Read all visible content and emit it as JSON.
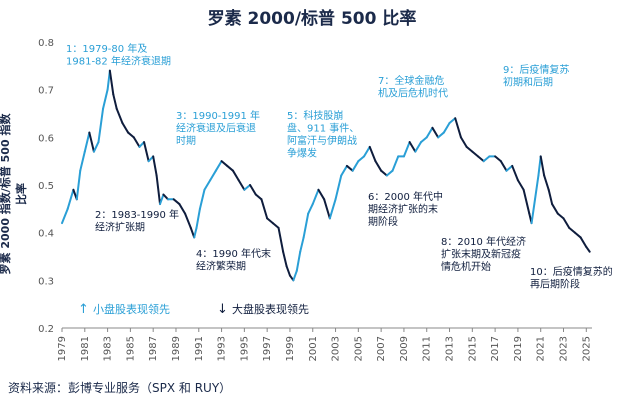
{
  "chart_data": {
    "type": "line",
    "title": "罗素 2000/标普 500 比率",
    "ylabel": "罗素 2000 指数/标普 500 指数比率",
    "xlabel": "",
    "ylim": [
      0.2,
      0.8
    ],
    "yticks": [
      "0.2",
      "0.3",
      "0.4",
      "0.5",
      "0.6",
      "0.7",
      "0.8"
    ],
    "xlim": [
      1979,
      2025.5
    ],
    "xticks": [
      "1979",
      "1981",
      "1983",
      "1985",
      "1987",
      "1989",
      "1991",
      "1993",
      "1995",
      "1997",
      "1999",
      "2001",
      "2003",
      "2005",
      "2007",
      "2009",
      "2011",
      "2013",
      "2015",
      "2017",
      "2019",
      "2021",
      "2023",
      "2025"
    ],
    "grid": false,
    "legend": "bottom-left",
    "series": [
      {
        "x": [
          1979.0,
          1979.5,
          1980.0,
          1980.3,
          1980.6,
          1981.0,
          1981.4,
          1981.8,
          1982.2,
          1982.6,
          1983.0,
          1983.2,
          1983.5,
          1983.8,
          1984.3,
          1984.8,
          1985.3,
          1985.8,
          1986.2,
          1986.6,
          1987.0,
          1987.3,
          1987.6,
          1987.9,
          1988.3,
          1988.8,
          1989.3,
          1989.8,
          1990.3,
          1990.6,
          1990.8,
          1991.1,
          1991.5,
          1992.0,
          1992.5,
          1993.0,
          1993.5,
          1994.0,
          1994.5,
          1995.0,
          1995.5,
          1996.0,
          1996.5,
          1997.0,
          1997.5,
          1998.0,
          1998.4,
          1998.7,
          1999.0,
          1999.3,
          1999.6,
          1999.9,
          2000.2,
          2000.6,
          2001.0,
          2001.5,
          2002.0,
          2002.5,
          2003.0,
          2003.5,
          2004.0,
          2004.5,
          2005.0,
          2005.5,
          2006.0,
          2006.5,
          2007.0,
          2007.5,
          2008.0,
          2008.5,
          2009.0,
          2009.5,
          2010.0,
          2010.5,
          2011.0,
          2011.5,
          2012.0,
          2012.5,
          2013.0,
          2013.5,
          2014.0,
          2014.5,
          2015.0,
          2015.5,
          2016.0,
          2016.5,
          2017.0,
          2017.5,
          2018.0,
          2018.5,
          2019.0,
          2019.5,
          2020.0,
          2020.2,
          2020.5,
          2020.8,
          2021.0,
          2021.3,
          2021.7,
          2022.0,
          2022.5,
          2023.0,
          2023.5,
          2024.0,
          2024.5,
          2025.0,
          2025.3
        ],
        "values": [
          0.42,
          0.45,
          0.49,
          0.47,
          0.53,
          0.57,
          0.61,
          0.57,
          0.59,
          0.66,
          0.7,
          0.74,
          0.69,
          0.66,
          0.63,
          0.61,
          0.6,
          0.58,
          0.59,
          0.55,
          0.56,
          0.52,
          0.46,
          0.48,
          0.47,
          0.47,
          0.46,
          0.44,
          0.41,
          0.39,
          0.41,
          0.45,
          0.49,
          0.51,
          0.53,
          0.55,
          0.54,
          0.53,
          0.51,
          0.49,
          0.5,
          0.48,
          0.47,
          0.43,
          0.42,
          0.41,
          0.36,
          0.33,
          0.31,
          0.3,
          0.32,
          0.36,
          0.39,
          0.44,
          0.46,
          0.49,
          0.47,
          0.43,
          0.47,
          0.52,
          0.54,
          0.53,
          0.55,
          0.56,
          0.58,
          0.55,
          0.53,
          0.52,
          0.53,
          0.56,
          0.56,
          0.59,
          0.57,
          0.59,
          0.6,
          0.62,
          0.6,
          0.61,
          0.63,
          0.64,
          0.6,
          0.58,
          0.57,
          0.56,
          0.55,
          0.56,
          0.56,
          0.55,
          0.53,
          0.54,
          0.51,
          0.49,
          0.44,
          0.42,
          0.47,
          0.52,
          0.56,
          0.52,
          0.49,
          0.46,
          0.44,
          0.43,
          0.41,
          0.4,
          0.39,
          0.37,
          0.36
        ]
      }
    ],
    "annotations": [
      {
        "lines": [
          "1：1979-80 年及",
          "1981-82 年经济衰退期"
        ],
        "style": "light"
      },
      {
        "lines": [
          "2：1983-1990 年",
          "经济扩张期"
        ],
        "style": "dark"
      },
      {
        "lines": [
          "3：1990-1991 年",
          "经济衰退及后衰退",
          "时期"
        ],
        "style": "light"
      },
      {
        "lines": [
          "4：1990 年代末",
          "经济繁荣期"
        ],
        "style": "dark"
      },
      {
        "lines": [
          "5：科技股崩",
          "盘、911 事件、",
          "阿富汗与伊朗战",
          "争爆发"
        ],
        "style": "light"
      },
      {
        "lines": [
          "6：2000 年代中",
          "期经济扩张的末",
          "期阶段"
        ],
        "style": "dark"
      },
      {
        "lines": [
          "7：全球金融危",
          "机及后危机时代"
        ],
        "style": "light"
      },
      {
        "lines": [
          "8：2010 年代经济",
          "扩张末期及新冠疫",
          "情危机开始"
        ],
        "style": "dark"
      },
      {
        "lines": [
          "9：后疫情复苏",
          "初期和后期"
        ],
        "style": "light"
      },
      {
        "lines": [
          "10：后疫情复苏的",
          "再后期阶段"
        ],
        "style": "dark"
      }
    ],
    "legend_items": [
      {
        "arrow": "↑",
        "label": "小盘股表现领先",
        "color": "#2a9fd6"
      },
      {
        "arrow": "↓",
        "label": "大盘股表现领先",
        "color": "#0f1d3d"
      }
    ]
  },
  "source": "资料来源：彭博专业服务（SPX 和 RUY）",
  "colors": {
    "light": "#2a9fd6",
    "dark": "#0f1d3d"
  }
}
